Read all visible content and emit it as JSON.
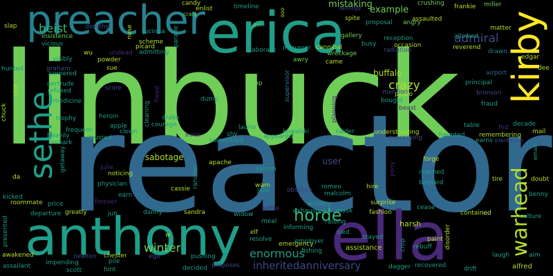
{
  "words": {
    "linbuck": "linbuck",
    "reactor": "reactor",
    "erica": "erica",
    "preacher": "preacher",
    "anthony": "anthony",
    "ella": "ella",
    "kirby": "kirby",
    "sethe": "sethe",
    "horde": "horde",
    "warhead": "warhead",
    "heist": "heist",
    "crazy": "crazy",
    "admiral": "admiral",
    "winter": "winter",
    "enormous": "enormous",
    "inheritedanniversary": "inheritedanniversary",
    "mistaking": "mistaking",
    "example": "example",
    "user": "user",
    "jake": "jake",
    "buffalo": "buffalo",
    "sabotage": "sabotage",
    "harsh": "harsh",
    "cassie": "cassie",
    "chester": "chester",
    "physician": "physician",
    "lucinda": "lucinda",
    "scheme": "scheme",
    "gallery": "gallery",
    "cannibal": "cannibal",
    "wreckage": "wreckage",
    "reception": "reception",
    "radiation": "radiation",
    "occasion": "occasion",
    "proposal": "proposal",
    "angry": "angry",
    "spite": "spite",
    "apology": "apology",
    "assaulted": "assaulted",
    "crushing": "crushing",
    "frankie": "frankie",
    "miller": "miller",
    "matter": "matter",
    "allowed": "allowed",
    "reverend": "reverend",
    "drawn": "drawn",
    "edgar": "edgar",
    "dee": "dee",
    "airport": "airport",
    "principal": "principal",
    "bronson": "bronson",
    "fraud": "fraud",
    "decade": "decade",
    "fed": "fed",
    "mail": "mail",
    "email": "email",
    "remembering": "remembering",
    "plantation": "plantation",
    "earns": "earns",
    "haunted": "haunted",
    "table": "table",
    "doubt": "doubt",
    "benny": "benny",
    "culture": "culture",
    "kai": "kai",
    "laugh": "laugh",
    "aim": "aim",
    "alfred": "alfred",
    "drift": "drift",
    "rebuff": "rebuff",
    "recovered": "recovered",
    "disorder": "disorder",
    "paint": "paint",
    "contained": "contained",
    "cease": "cease",
    "bernard": "bernard",
    "reached": "reached",
    "tire": "tire",
    "surprise": "surprise",
    "fashion": "fashion",
    "stayed": "stayed",
    "pony": "pony",
    "hire": "hire",
    "romeo": "romeo",
    "malcolm": "malcolm",
    "artillery": "artillery",
    "mask": "mask",
    "raising": "raising",
    "sled": "sled",
    "exhausted": "exhausted",
    "observe": "observe",
    "warn": "warn",
    "saloon": "saloon",
    "apache": "apache",
    "committed": "committed",
    "appeared": "appeared",
    "kowalski": "kowalski",
    "raider": "raider",
    "understanding": "understanding",
    "expressing": "expressing",
    "forge": "forge",
    "bought": "bought",
    "pedro": "pedro",
    "mention": "mention",
    "beast": "beast",
    "supervisor": "supervisor",
    "awry": "awry",
    "came": "came",
    "busy": "busy",
    "manager": "manager",
    "elaborate": "elaborate",
    "shop": "shop",
    "shy": "shy",
    "laurie": "laurie",
    "dump": "dump",
    "drake": "drake",
    "courage": "courage",
    "cleaning": "cleaning",
    "freed": "freed",
    "admitting": "admitting",
    "parade": "parade",
    "picard": "picard",
    "nose": "nose",
    "dorothy": "dorothy",
    "craig": "craig",
    "candy": "candy",
    "enlist": "enlist",
    "timeline": "timeline",
    "pin": "pin",
    "soo": "soo",
    "slap": "slap",
    "vicious": "vicious",
    "insistence": "insistence",
    "wu": "wu",
    "powder": "powder",
    "undead": "undead",
    "sue": "sue",
    "hunted": "hunted",
    "graham": "graham",
    "cornered": "cornered",
    "visibly": "visibly",
    "gertrude": "gertrude",
    "refused": "refused",
    "score": "score",
    "nice": "nice",
    "medicine": "medicine",
    "chuck": "chuck",
    "trophy": "trophy",
    "heroin": "heroin",
    "apple": "apple",
    "clown": "clown",
    "frequent": "frequent",
    "heavily": "heavily",
    "trusted": "trusted",
    "embark": "embark",
    "inner": "inner",
    "getaway": "getaway",
    "julie": "julie",
    "noticing": "noticing",
    "rancher": "rancher",
    "da": "da",
    "kicked": "kicked",
    "roommate": "roommate",
    "price": "price",
    "forever": "forever",
    "earn": "earn",
    "departure": "departure",
    "greatly": "greatly",
    "jun": "jun",
    "danny": "danny",
    "sandra": "sandra",
    "widow": "widow",
    "santa": "santa",
    "elf": "elf",
    "meal": "meal",
    "informing": "informing",
    "resolve": "resolve",
    "emergency": "emergency",
    "employer": "employer",
    "fishing": "fishing",
    "assistance": "assistance",
    "crop": "crop",
    "dagger": "dagger",
    "presented": "presented",
    "awakened": "awakened",
    "assailant": "assailant",
    "impending": "impending",
    "newton": "newton",
    "scott": "scott",
    "pile": "pile",
    "hint": "hint",
    "ego": "ego",
    "w": "w",
    "decided": "decided",
    "pushing": "pushing",
    "proposes": "proposes",
    "planning": "planning"
  },
  "colors": {
    "background": "#000000",
    "dark_purple": "#440154",
    "purple": "#482878",
    "indigo": "#3e4989",
    "blue": "#31688e",
    "steel_blue": "#26828e",
    "teal": "#1f9e89",
    "green_teal": "#35b779",
    "green": "#6ece58",
    "lime": "#b5de2b",
    "yellow": "#fde725"
  }
}
